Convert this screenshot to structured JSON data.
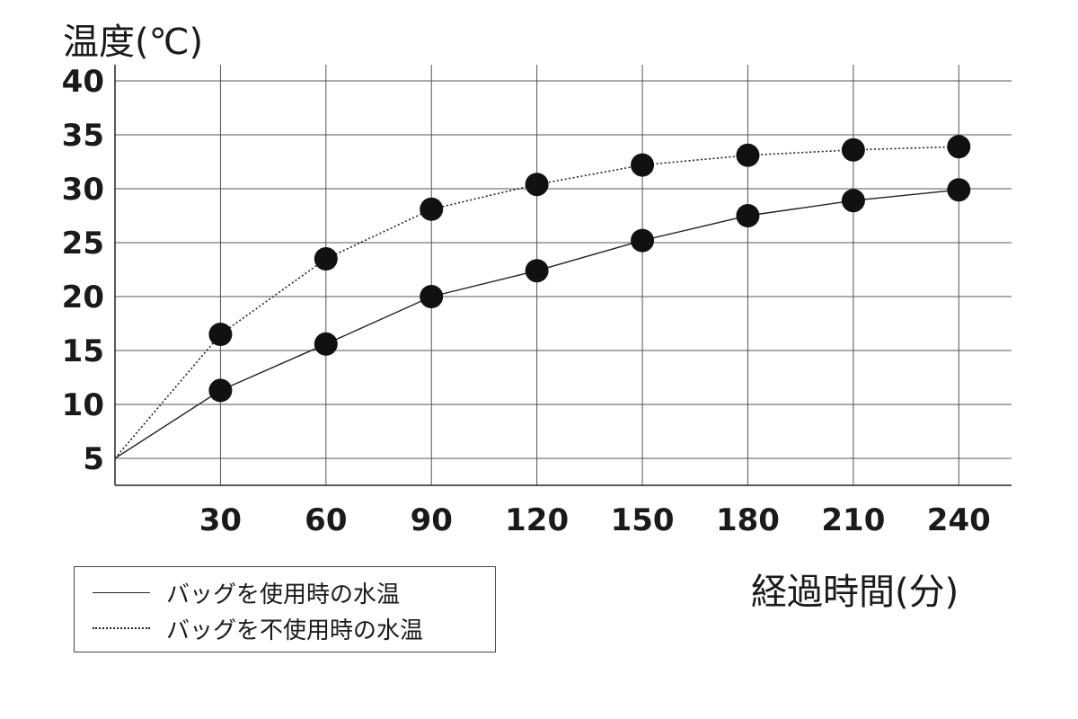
{
  "chart_data": {
    "type": "line",
    "ylabel": "温度(℃)",
    "xlabel": "経過時間(分)",
    "x": [
      0,
      30,
      60,
      90,
      120,
      150,
      180,
      210,
      240
    ],
    "x_ticks": [
      "30",
      "60",
      "90",
      "120",
      "150",
      "180",
      "210",
      "240"
    ],
    "y_ticks": [
      "5",
      "10",
      "15",
      "20",
      "25",
      "30",
      "35",
      "40"
    ],
    "xlim": [
      0,
      255
    ],
    "ylim": [
      2.5,
      41.5
    ],
    "grid": true,
    "legend_position": "bottom-left",
    "series": [
      {
        "name": "バッグを使用時の水温",
        "style": "solid",
        "values": [
          5,
          11.3,
          15.6,
          20.0,
          22.4,
          25.2,
          27.5,
          28.9,
          29.9
        ]
      },
      {
        "name": "バッグを不使用時の水温",
        "style": "dotted",
        "values": [
          5,
          16.5,
          23.5,
          28.1,
          30.4,
          32.2,
          33.1,
          33.6,
          33.9
        ]
      }
    ],
    "colors": {
      "line": "#222222",
      "marker": "#111111",
      "grid": "#555555"
    }
  }
}
